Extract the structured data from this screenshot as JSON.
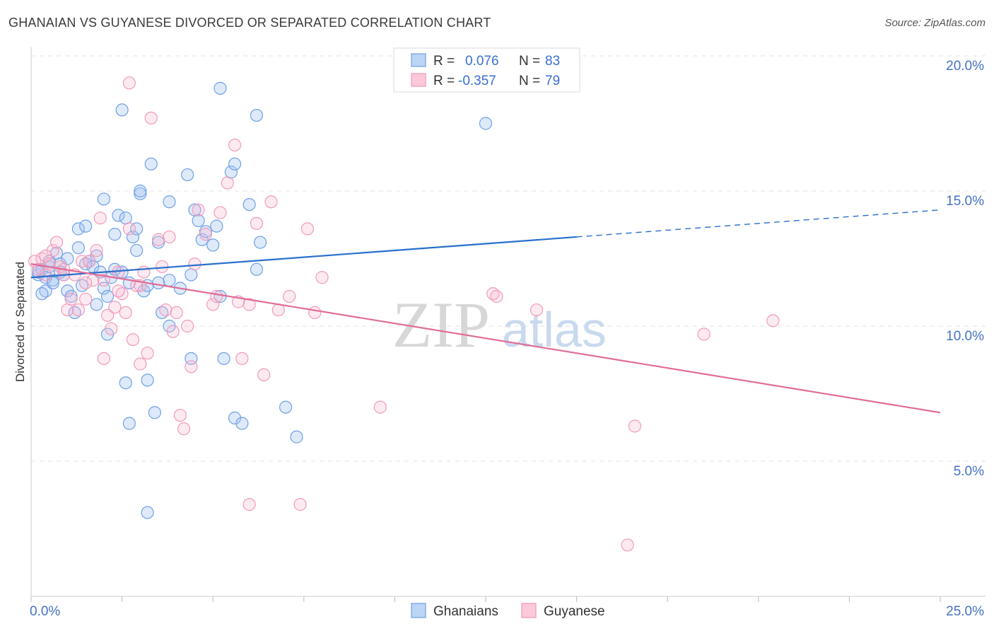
{
  "title": "GHANAIAN VS GUYANESE DIVORCED OR SEPARATED CORRELATION CHART",
  "source": "Source: ZipAtlas.com",
  "colors": {
    "blue": "#6fa0e6",
    "blue_line": "#2a6fcc",
    "pink": "#f19ab9",
    "pink_line": "#e06b97",
    "tick": "#4472c4"
  },
  "legend_top": [
    {
      "series": "Ghanaians",
      "r_label": "R =",
      "r_value": "0.076",
      "n_label": "N =",
      "n_value": "83"
    },
    {
      "series": "Guyanese",
      "r_label": "R =",
      "r_value": "-0.357",
      "n_label": "N =",
      "n_value": "79"
    }
  ],
  "chart_data": {
    "type": "scatter",
    "title": "GHANAIAN VS GUYANESE DIVORCED OR SEPARATED CORRELATION CHART",
    "xlabel": "",
    "ylabel": "Divorced or Separated",
    "xlim": [
      0,
      25
    ],
    "ylim": [
      0,
      20
    ],
    "x_tick_labels": [
      "0.0%",
      "25.0%"
    ],
    "y_tick_labels": [
      "5.0%",
      "10.0%",
      "15.0%",
      "20.0%"
    ],
    "y_ticks": [
      5,
      10,
      15,
      20
    ],
    "grid": true,
    "legend_position": "bottom-center",
    "series": [
      {
        "name": "Ghanaians",
        "trend": {
          "x0": 0,
          "y0": 11.8,
          "x1": 25,
          "y1": 14.3,
          "solid_until_x": 15
        },
        "points": [
          [
            0.2,
            11.9
          ],
          [
            0.3,
            12.1
          ],
          [
            0.4,
            11.3
          ],
          [
            0.5,
            12.2
          ],
          [
            0.6,
            11.7
          ],
          [
            0.7,
            12.7
          ],
          [
            0.8,
            12.3
          ],
          [
            0.9,
            11.9
          ],
          [
            1.0,
            11.3
          ],
          [
            1.1,
            11.1
          ],
          [
            1.2,
            10.5
          ],
          [
            1.3,
            13.6
          ],
          [
            1.4,
            11.5
          ],
          [
            1.5,
            13.7
          ],
          [
            1.6,
            12.4
          ],
          [
            1.7,
            12.2
          ],
          [
            1.8,
            10.8
          ],
          [
            1.9,
            12.0
          ],
          [
            2.0,
            11.4
          ],
          [
            2.1,
            11.1
          ],
          [
            2.2,
            11.8
          ],
          [
            2.0,
            14.7
          ],
          [
            2.3,
            13.4
          ],
          [
            2.4,
            14.1
          ],
          [
            2.5,
            12.0
          ],
          [
            2.5,
            18.0
          ],
          [
            2.6,
            14.0
          ],
          [
            2.7,
            11.6
          ],
          [
            2.8,
            13.3
          ],
          [
            2.9,
            12.8
          ],
          [
            3.0,
            14.9
          ],
          [
            3.1,
            11.3
          ],
          [
            3.2,
            11.5
          ],
          [
            3.0,
            15.0
          ],
          [
            3.3,
            16.0
          ],
          [
            3.5,
            13.1
          ],
          [
            3.6,
            10.5
          ],
          [
            3.8,
            11.7
          ],
          [
            3.8,
            14.6
          ],
          [
            3.4,
            6.8
          ],
          [
            2.7,
            6.4
          ],
          [
            3.2,
            8.0
          ],
          [
            2.6,
            7.9
          ],
          [
            3.8,
            10.0
          ],
          [
            4.3,
            15.6
          ],
          [
            4.5,
            14.3
          ],
          [
            4.6,
            13.9
          ],
          [
            4.7,
            13.2
          ],
          [
            4.8,
            13.5
          ],
          [
            5.0,
            13.0
          ],
          [
            5.1,
            13.7
          ],
          [
            5.2,
            11.1
          ],
          [
            5.5,
            15.7
          ],
          [
            5.6,
            16.0
          ],
          [
            5.2,
            18.8
          ],
          [
            5.3,
            8.8
          ],
          [
            5.6,
            6.6
          ],
          [
            5.8,
            6.4
          ],
          [
            6.0,
            14.5
          ],
          [
            6.3,
            13.1
          ],
          [
            6.2,
            12.1
          ],
          [
            6.2,
            17.8
          ],
          [
            7.0,
            7.0
          ],
          [
            7.3,
            5.9
          ],
          [
            4.4,
            8.8
          ],
          [
            4.4,
            11.9
          ],
          [
            3.2,
            3.1
          ],
          [
            12.5,
            17.5
          ],
          [
            0.2,
            12.0
          ],
          [
            0.4,
            11.8
          ],
          [
            0.6,
            11.6
          ],
          [
            1.0,
            12.5
          ],
          [
            1.5,
            12.3
          ],
          [
            2.1,
            9.7
          ],
          [
            2.3,
            12.1
          ],
          [
            3.5,
            11.6
          ],
          [
            1.3,
            12.9
          ],
          [
            0.8,
            12.0
          ],
          [
            0.3,
            11.2
          ],
          [
            1.8,
            12.6
          ],
          [
            2.9,
            13.6
          ],
          [
            4.1,
            11.4
          ],
          [
            0.5,
            12.4
          ]
        ]
      },
      {
        "name": "Guyanese",
        "trend": {
          "x0": 0,
          "y0": 12.3,
          "x1": 25,
          "y1": 6.8
        },
        "points": [
          [
            0.1,
            12.4
          ],
          [
            0.2,
            12.1
          ],
          [
            0.3,
            12.5
          ],
          [
            0.4,
            11.9
          ],
          [
            0.5,
            12.3
          ],
          [
            0.6,
            12.8
          ],
          [
            0.7,
            13.1
          ],
          [
            0.8,
            12.2
          ],
          [
            0.9,
            11.9
          ],
          [
            1.0,
            10.6
          ],
          [
            1.1,
            11.0
          ],
          [
            1.2,
            11.9
          ],
          [
            1.3,
            10.6
          ],
          [
            1.4,
            12.4
          ],
          [
            1.5,
            11.0
          ],
          [
            1.6,
            12.4
          ],
          [
            1.7,
            11.7
          ],
          [
            1.8,
            12.8
          ],
          [
            1.9,
            14.0
          ],
          [
            2.0,
            11.7
          ],
          [
            2.1,
            10.4
          ],
          [
            2.2,
            9.9
          ],
          [
            2.0,
            8.8
          ],
          [
            2.3,
            10.7
          ],
          [
            2.4,
            12.0
          ],
          [
            2.5,
            11.2
          ],
          [
            2.6,
            10.5
          ],
          [
            2.7,
            13.6
          ],
          [
            2.8,
            9.5
          ],
          [
            2.9,
            11.5
          ],
          [
            3.0,
            8.6
          ],
          [
            3.1,
            12.0
          ],
          [
            3.2,
            9.0
          ],
          [
            2.7,
            19.0
          ],
          [
            3.3,
            17.7
          ],
          [
            3.5,
            13.2
          ],
          [
            3.6,
            12.2
          ],
          [
            3.7,
            10.6
          ],
          [
            3.8,
            13.3
          ],
          [
            3.9,
            9.8
          ],
          [
            4.0,
            10.5
          ],
          [
            4.1,
            6.7
          ],
          [
            4.2,
            6.2
          ],
          [
            4.3,
            10.0
          ],
          [
            4.4,
            8.5
          ],
          [
            4.5,
            12.3
          ],
          [
            4.6,
            14.3
          ],
          [
            4.8,
            13.4
          ],
          [
            5.0,
            10.8
          ],
          [
            5.2,
            14.2
          ],
          [
            5.4,
            15.3
          ],
          [
            5.6,
            16.7
          ],
          [
            5.7,
            10.9
          ],
          [
            5.8,
            8.8
          ],
          [
            6.0,
            10.8
          ],
          [
            6.2,
            13.8
          ],
          [
            6.4,
            8.2
          ],
          [
            6.6,
            14.6
          ],
          [
            6.8,
            10.6
          ],
          [
            7.1,
            11.1
          ],
          [
            7.4,
            3.4
          ],
          [
            7.6,
            13.6
          ],
          [
            7.8,
            10.5
          ],
          [
            8.0,
            11.8
          ],
          [
            9.6,
            7.0
          ],
          [
            12.7,
            11.2
          ],
          [
            12.8,
            11.1
          ],
          [
            13.9,
            10.6
          ],
          [
            16.6,
            6.3
          ],
          [
            16.4,
            1.9
          ],
          [
            18.5,
            9.7
          ],
          [
            20.4,
            10.2
          ],
          [
            5.1,
            11.1
          ],
          [
            3.0,
            11.5
          ],
          [
            1.5,
            11.6
          ],
          [
            0.9,
            12.1
          ],
          [
            0.4,
            12.6
          ],
          [
            2.4,
            11.3
          ],
          [
            6.0,
            3.4
          ]
        ]
      }
    ]
  }
}
